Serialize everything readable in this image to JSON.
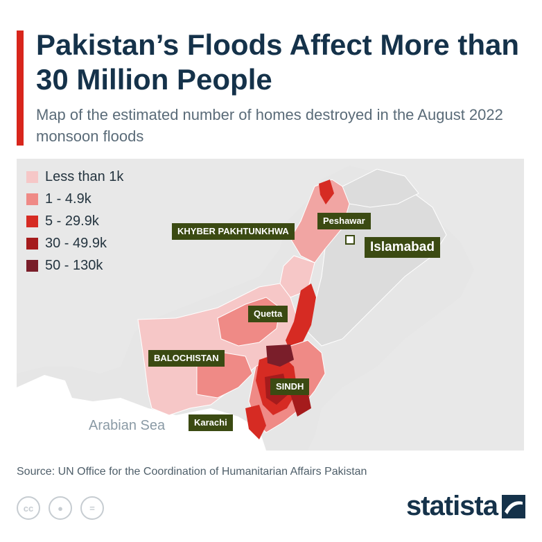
{
  "header": {
    "title": "Pakistan’s Floods Affect More than 30 Million People",
    "subtitle": "Map of the estimated number of homes destroyed in the August 2022 monsoon floods"
  },
  "legend": [
    {
      "label": "Less than 1k",
      "color": "#f6c7c7"
    },
    {
      "label": "1 - 4.9k",
      "color": "#ef8a86"
    },
    {
      "label": "5 - 29.9k",
      "color": "#d62b23"
    },
    {
      "label": "30 - 49.9k",
      "color": "#a51b1c"
    },
    {
      "label": "50 - 130k",
      "color": "#7a1e2a"
    }
  ],
  "labels": {
    "khyber": "KHYBER PAKHTUNKHWA",
    "peshawar": "Peshawar",
    "islamabad": "Islamabad",
    "quetta": "Quetta",
    "balochistan": "BALOCHISTAN",
    "sindh": "SINDH",
    "karachi": "Karachi",
    "sea": "Arabian Sea"
  },
  "colors": {
    "background": "#e6e6e6",
    "sea": "#ffffff",
    "land_unaffected": "#e4e4e4",
    "label_bg": "#3b4a12",
    "accent": "#d8261c",
    "title": "#15324a"
  },
  "footer": {
    "source": "Source: UN Office for the Coordination of Humanitarian Affairs Pakistan",
    "brand": "statista",
    "cc_icons": [
      "cc-icon",
      "by-icon",
      "nd-icon"
    ]
  }
}
